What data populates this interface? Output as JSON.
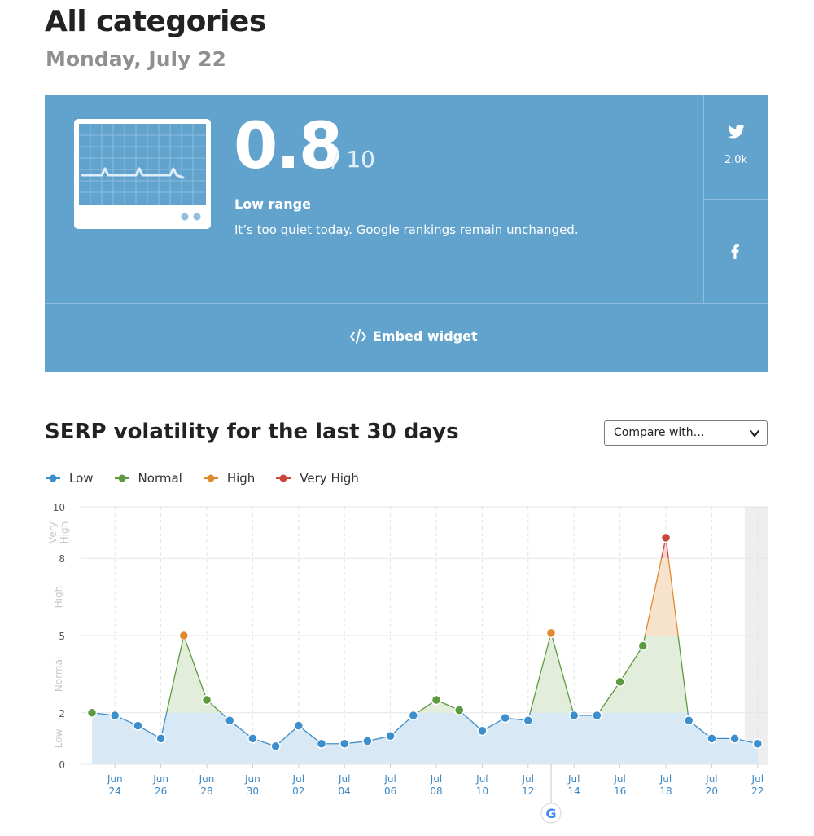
{
  "page": {
    "title": "All categories",
    "date": "Monday, July 22"
  },
  "score": {
    "value": "0.8",
    "max": "/ 10",
    "range_label": "Low range",
    "description": "It’s too quiet today. Google rankings remain unchanged."
  },
  "social": {
    "twitter_icon": "twitter-bird-icon",
    "twitter_count": "2.0k",
    "facebook_icon": "facebook-f-icon"
  },
  "embed": {
    "icon": "code-icon",
    "label": "Embed widget"
  },
  "section": {
    "title": "SERP volatility for the last 30 days"
  },
  "compare": {
    "label": "Compare with…"
  },
  "colors": {
    "panel": "#62a3cd",
    "low": "#3c8ecc",
    "normal": "#5b9a3e",
    "high": "#e08a2e",
    "very_high": "#c9463d",
    "low_fill": "#d8e8f4",
    "normal_fill": "#e2eedb",
    "high_fill": "#f7e3cc",
    "very_high_fill": "#f2d4d0"
  },
  "chart_data": {
    "type": "area",
    "title": "",
    "xlabel": "",
    "ylabel": "",
    "ylim": [
      0,
      10
    ],
    "y_ticks": [
      0,
      2,
      5,
      8,
      10
    ],
    "y_bands": [
      {
        "label": "Low",
        "from": 0,
        "to": 2
      },
      {
        "label": "Normal",
        "from": 2,
        "to": 5
      },
      {
        "label": "High",
        "from": 5,
        "to": 8
      },
      {
        "label": "Very High",
        "from": 8,
        "to": 10
      }
    ],
    "legend": [
      {
        "label": "Low",
        "color": "#3c8ecc"
      },
      {
        "label": "Normal",
        "color": "#5b9a3e"
      },
      {
        "label": "High",
        "color": "#e08a2e"
      },
      {
        "label": "Very High",
        "color": "#c9463d"
      }
    ],
    "legend_position": "top-left",
    "x_tick_labels": [
      [
        "Jun",
        "24"
      ],
      [
        "Jun",
        "26"
      ],
      [
        "Jun",
        "28"
      ],
      [
        "Jun",
        "30"
      ],
      [
        "Jul",
        "02"
      ],
      [
        "Jul",
        "04"
      ],
      [
        "Jul",
        "06"
      ],
      [
        "Jul",
        "08"
      ],
      [
        "Jul",
        "10"
      ],
      [
        "Jul",
        "12"
      ],
      [
        "Jul",
        "14"
      ],
      [
        "Jul",
        "16"
      ],
      [
        "Jul",
        "18"
      ],
      [
        "Jul",
        "20"
      ],
      [
        "Jul",
        "22"
      ]
    ],
    "dates": [
      "Jun 23",
      "Jun 24",
      "Jun 25",
      "Jun 26",
      "Jun 27",
      "Jun 28",
      "Jun 29",
      "Jun 30",
      "Jul 01",
      "Jul 02",
      "Jul 03",
      "Jul 04",
      "Jul 05",
      "Jul 06",
      "Jul 07",
      "Jul 08",
      "Jul 09",
      "Jul 10",
      "Jul 11",
      "Jul 12",
      "Jul 13",
      "Jul 14",
      "Jul 15",
      "Jul 16",
      "Jul 17",
      "Jul 18",
      "Jul 19",
      "Jul 20",
      "Jul 21",
      "Jul 22"
    ],
    "values": [
      2.0,
      1.9,
      1.5,
      1.0,
      5.0,
      2.5,
      1.7,
      1.0,
      0.7,
      1.5,
      0.8,
      0.8,
      0.9,
      1.1,
      1.9,
      2.5,
      2.1,
      1.3,
      1.8,
      1.7,
      5.1,
      1.9,
      1.9,
      3.2,
      4.6,
      8.8,
      1.7,
      1.0,
      1.0,
      0.8
    ],
    "google_update_marker": "Jul 13",
    "highlight_last": true,
    "grid": true
  }
}
